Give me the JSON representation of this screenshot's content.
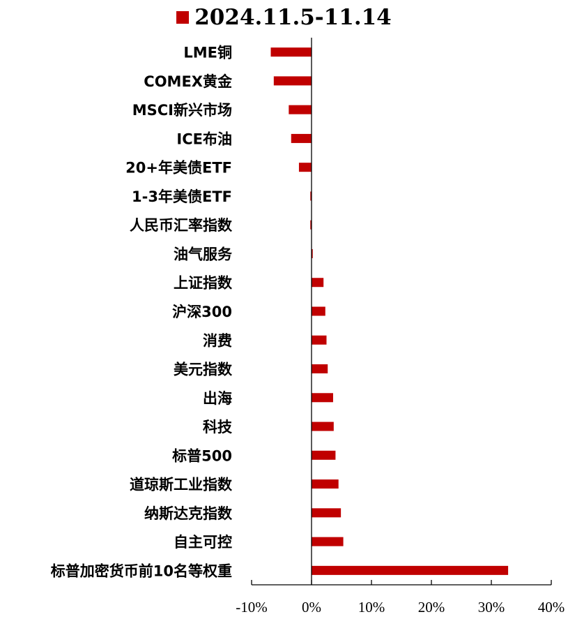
{
  "chart_data": {
    "type": "bar",
    "orientation": "horizontal",
    "categories": [
      "LME铜",
      "COMEX黄金",
      "MSCI新兴市场",
      "ICE布油",
      "20+年美债ETF",
      "1-3年美债ETF",
      "人民币汇率指数",
      "油气服务",
      "上证指数",
      "沪深300",
      "消费",
      "美元指数",
      "出海",
      "科技",
      "标普500",
      "道琼斯工业指数",
      "纳斯达克指数",
      "自主可控",
      "标普加密货币前10名等权重"
    ],
    "series": [
      {
        "name": "2024.11.5-11.14",
        "color": "#C00000",
        "values": [
          -6.8,
          -6.3,
          -3.8,
          -3.4,
          -2.1,
          -0.2,
          -0.2,
          0.2,
          2.0,
          2.3,
          2.5,
          2.7,
          3.6,
          3.7,
          4.0,
          4.5,
          4.9,
          5.3,
          32.8
        ]
      }
    ],
    "xlim": [
      -10,
      40
    ],
    "xticks": [
      -10,
      0,
      10,
      20,
      30,
      40
    ],
    "xtick_labels": [
      "-10%",
      "0%",
      "10%",
      "20%",
      "30%",
      "40%"
    ],
    "legend_position": "top",
    "grid": false
  }
}
